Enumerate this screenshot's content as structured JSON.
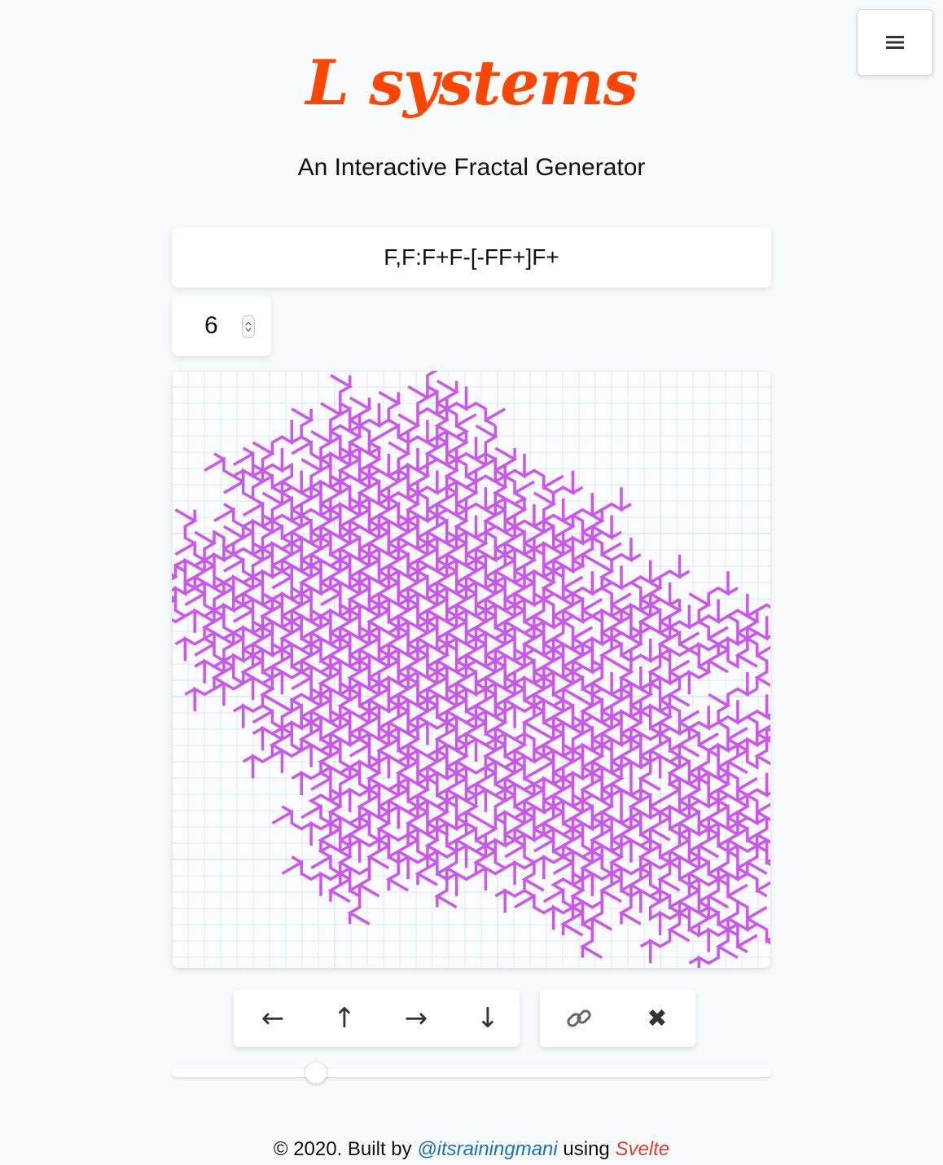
{
  "header": {
    "title": "L systems",
    "subtitle": "An Interactive Fractal Generator",
    "menu_icon": "hamburger-icon"
  },
  "inputs": {
    "rule": "F,F:F+F-[-FF+]F+",
    "iterations": "6"
  },
  "canvas": {
    "stroke_color": "#cc55f0",
    "grid_color": "#d4e3f5",
    "angle_degrees": 60
  },
  "controls": {
    "pan": [
      {
        "name": "pan-left-button",
        "label": "←",
        "icon": "arrow-left-icon"
      },
      {
        "name": "pan-up-button",
        "label": "↑",
        "icon": "arrow-up-icon"
      },
      {
        "name": "pan-right-button",
        "label": "→",
        "icon": "arrow-right-icon"
      },
      {
        "name": "pan-down-button",
        "label": "↓",
        "icon": "arrow-down-icon"
      }
    ],
    "actions": [
      {
        "name": "share-link-button",
        "label": "🔗",
        "icon": "link-icon"
      },
      {
        "name": "clear-button",
        "label": "✖",
        "icon": "close-icon"
      }
    ]
  },
  "slider": {
    "value_fraction": 0.24
  },
  "footer": {
    "prefix": "© 2020. Built by ",
    "handle": "@itsrainingmani",
    "middle": " using ",
    "framework": "Svelte"
  },
  "colors": {
    "title": "#ff4500",
    "link": "#1a6fc4",
    "svelte": "#e03e2d",
    "background": "#f7fbfb"
  }
}
